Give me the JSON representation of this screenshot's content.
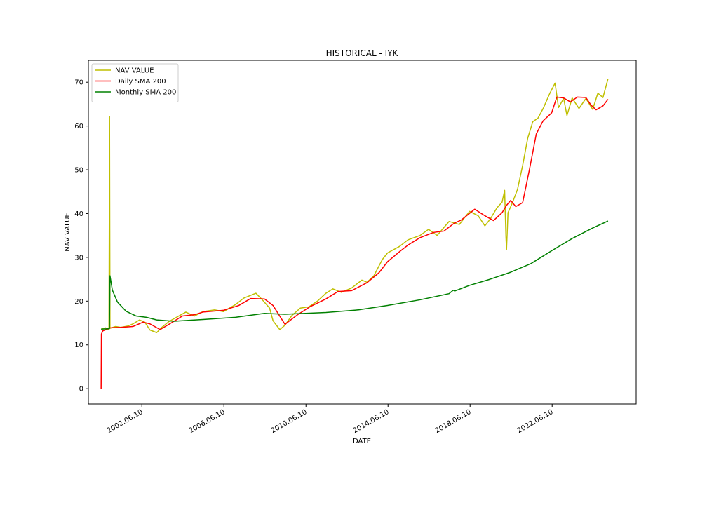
{
  "chart_data": {
    "type": "line",
    "title": "HISTORICAL - IYK",
    "xlabel": "DATE",
    "ylabel": "NAV VALUE",
    "xlim": [
      "1999-11-01",
      "2026-07-15"
    ],
    "ylim": [
      -3.5,
      75
    ],
    "x_ticks": [
      "2002.06.10",
      "2006.06.10",
      "2010.06.10",
      "2014.06.10",
      "2018.06.10",
      "2022.06.10"
    ],
    "y_ticks": [
      0,
      10,
      20,
      30,
      40,
      50,
      60,
      70
    ],
    "legend_position": "upper-left",
    "grid": false,
    "series": [
      {
        "name": "NAV VALUE",
        "color": "#bfbf00",
        "points": [
          [
            "2000-06-15",
            13.6
          ],
          [
            "2000-09-01",
            13.9
          ],
          [
            "2000-11-01",
            13.5
          ],
          [
            "2000-11-12",
            62.2
          ],
          [
            "2000-11-20",
            13.8
          ],
          [
            "2001-03-01",
            14.2
          ],
          [
            "2001-06-01",
            14.0
          ],
          [
            "2001-10-01",
            14.3
          ],
          [
            "2002-01-01",
            14.8
          ],
          [
            "2002-05-01",
            15.7
          ],
          [
            "2002-08-01",
            15.2
          ],
          [
            "2002-11-01",
            13.4
          ],
          [
            "2003-03-01",
            12.8
          ],
          [
            "2003-06-01",
            14.0
          ],
          [
            "2003-10-01",
            15.3
          ],
          [
            "2004-03-01",
            16.4
          ],
          [
            "2004-08-01",
            17.5
          ],
          [
            "2005-01-01",
            16.6
          ],
          [
            "2005-06-01",
            17.6
          ],
          [
            "2006-01-01",
            18.0
          ],
          [
            "2006-06-01",
            17.6
          ],
          [
            "2007-01-01",
            19.2
          ],
          [
            "2007-06-01",
            20.7
          ],
          [
            "2008-01-01",
            21.8
          ],
          [
            "2008-05-01",
            20.2
          ],
          [
            "2008-09-01",
            18.4
          ],
          [
            "2008-11-01",
            15.5
          ],
          [
            "2009-03-01",
            13.5
          ],
          [
            "2009-06-01",
            14.5
          ],
          [
            "2009-10-01",
            16.7
          ],
          [
            "2010-03-01",
            18.4
          ],
          [
            "2010-08-01",
            18.7
          ],
          [
            "2011-01-01",
            20.0
          ],
          [
            "2011-06-01",
            21.8
          ],
          [
            "2011-10-01",
            22.8
          ],
          [
            "2012-03-01",
            22.0
          ],
          [
            "2012-09-01",
            23.0
          ],
          [
            "2013-03-01",
            24.8
          ],
          [
            "2013-06-01",
            24.3
          ],
          [
            "2013-10-01",
            25.8
          ],
          [
            "2014-03-01",
            29.5
          ],
          [
            "2014-06-01",
            31.0
          ],
          [
            "2015-01-01",
            32.5
          ],
          [
            "2015-06-01",
            34.0
          ],
          [
            "2016-01-01",
            35.0
          ],
          [
            "2016-06-01",
            36.4
          ],
          [
            "2016-11-01",
            35.0
          ],
          [
            "2017-06-01",
            38.2
          ],
          [
            "2017-12-01",
            37.5
          ],
          [
            "2018-03-01",
            39.0
          ],
          [
            "2018-06-01",
            40.5
          ],
          [
            "2018-11-01",
            39.5
          ],
          [
            "2019-03-01",
            37.2
          ],
          [
            "2019-06-01",
            38.7
          ],
          [
            "2019-10-01",
            41.3
          ],
          [
            "2020-01-01",
            42.6
          ],
          [
            "2020-02-15",
            45.3
          ],
          [
            "2020-03-10",
            34.5
          ],
          [
            "2020-03-20",
            31.8
          ],
          [
            "2020-04-15",
            40.2
          ],
          [
            "2020-07-01",
            42.4
          ],
          [
            "2020-10-01",
            45.5
          ],
          [
            "2021-01-01",
            51.0
          ],
          [
            "2021-04-01",
            57.2
          ],
          [
            "2021-07-01",
            61.0
          ],
          [
            "2021-10-01",
            61.8
          ],
          [
            "2022-01-01",
            64.0
          ],
          [
            "2022-05-01",
            67.5
          ],
          [
            "2022-08-01",
            69.8
          ],
          [
            "2022-10-01",
            64.2
          ],
          [
            "2023-01-01",
            66.3
          ],
          [
            "2023-03-01",
            62.4
          ],
          [
            "2023-06-01",
            66.4
          ],
          [
            "2023-10-01",
            64.0
          ],
          [
            "2024-02-01",
            66.3
          ],
          [
            "2024-06-01",
            63.8
          ],
          [
            "2024-09-01",
            67.5
          ],
          [
            "2024-12-01",
            66.5
          ],
          [
            "2025-03-01",
            70.8
          ]
        ]
      },
      {
        "name": "Daily SMA 200",
        "color": "#ff0000",
        "points": [
          [
            "2000-06-15",
            0.0
          ],
          [
            "2000-06-20",
            12.5
          ],
          [
            "2000-07-15",
            13.2
          ],
          [
            "2000-12-01",
            13.9
          ],
          [
            "2001-06-01",
            14.0
          ],
          [
            "2002-01-01",
            14.2
          ],
          [
            "2002-07-01",
            15.2
          ],
          [
            "2002-11-01",
            14.8
          ],
          [
            "2003-05-01",
            13.5
          ],
          [
            "2003-11-01",
            14.9
          ],
          [
            "2004-06-01",
            16.6
          ],
          [
            "2005-01-01",
            16.9
          ],
          [
            "2005-06-01",
            17.5
          ],
          [
            "2006-06-01",
            17.9
          ],
          [
            "2007-03-01",
            19.0
          ],
          [
            "2007-10-01",
            20.6
          ],
          [
            "2008-06-01",
            20.5
          ],
          [
            "2008-11-01",
            19.0
          ],
          [
            "2009-06-01",
            14.7
          ],
          [
            "2010-01-01",
            16.8
          ],
          [
            "2010-09-01",
            18.8
          ],
          [
            "2011-06-01",
            20.5
          ],
          [
            "2012-01-01",
            22.2
          ],
          [
            "2012-09-01",
            22.4
          ],
          [
            "2013-06-01",
            24.2
          ],
          [
            "2014-01-01",
            26.5
          ],
          [
            "2014-06-01",
            29.0
          ],
          [
            "2015-01-01",
            31.3
          ],
          [
            "2015-06-01",
            32.8
          ],
          [
            "2016-01-01",
            34.5
          ],
          [
            "2016-09-01",
            35.7
          ],
          [
            "2017-03-01",
            36.0
          ],
          [
            "2017-09-01",
            37.8
          ],
          [
            "2018-01-01",
            38.5
          ],
          [
            "2018-09-01",
            41.0
          ],
          [
            "2019-03-01",
            39.5
          ],
          [
            "2019-08-01",
            38.4
          ],
          [
            "2020-01-01",
            40.2
          ],
          [
            "2020-03-15",
            41.8
          ],
          [
            "2020-06-01",
            43.0
          ],
          [
            "2020-09-01",
            41.6
          ],
          [
            "2021-01-01",
            42.5
          ],
          [
            "2021-05-01",
            50.0
          ],
          [
            "2021-09-01",
            58.2
          ],
          [
            "2022-01-01",
            61.2
          ],
          [
            "2022-06-01",
            63.0
          ],
          [
            "2022-09-01",
            66.6
          ],
          [
            "2023-01-01",
            66.4
          ],
          [
            "2023-05-01",
            65.5
          ],
          [
            "2023-09-01",
            66.6
          ],
          [
            "2024-02-01",
            66.5
          ],
          [
            "2024-05-01",
            64.8
          ],
          [
            "2024-08-01",
            63.7
          ],
          [
            "2024-12-01",
            64.6
          ],
          [
            "2025-03-01",
            66.1
          ]
        ]
      },
      {
        "name": "Monthly SMA 200",
        "color": "#008000",
        "points": [
          [
            "2000-06-15",
            13.6
          ],
          [
            "2000-11-10",
            13.7
          ],
          [
            "2000-11-20",
            25.8
          ],
          [
            "2001-01-01",
            22.5
          ],
          [
            "2001-04-01",
            19.8
          ],
          [
            "2001-09-01",
            17.7
          ],
          [
            "2002-03-01",
            16.6
          ],
          [
            "2002-09-01",
            16.3
          ],
          [
            "2003-03-01",
            15.7
          ],
          [
            "2004-01-01",
            15.4
          ],
          [
            "2005-06-01",
            15.8
          ],
          [
            "2007-01-01",
            16.3
          ],
          [
            "2008-06-01",
            17.2
          ],
          [
            "2009-06-01",
            17.0
          ],
          [
            "2010-06-01",
            17.2
          ],
          [
            "2011-06-01",
            17.4
          ],
          [
            "2013-01-01",
            18.0
          ],
          [
            "2014-06-01",
            19.0
          ],
          [
            "2016-01-01",
            20.3
          ],
          [
            "2017-06-01",
            21.7
          ],
          [
            "2017-08-15",
            22.5
          ],
          [
            "2017-09-10",
            22.3
          ],
          [
            "2018-06-01",
            23.6
          ],
          [
            "2019-06-01",
            25.0
          ],
          [
            "2020-06-01",
            26.6
          ],
          [
            "2021-06-01",
            28.6
          ],
          [
            "2022-06-01",
            31.5
          ],
          [
            "2023-06-01",
            34.3
          ],
          [
            "2024-06-01",
            36.7
          ],
          [
            "2025-03-01",
            38.3
          ]
        ]
      }
    ]
  }
}
